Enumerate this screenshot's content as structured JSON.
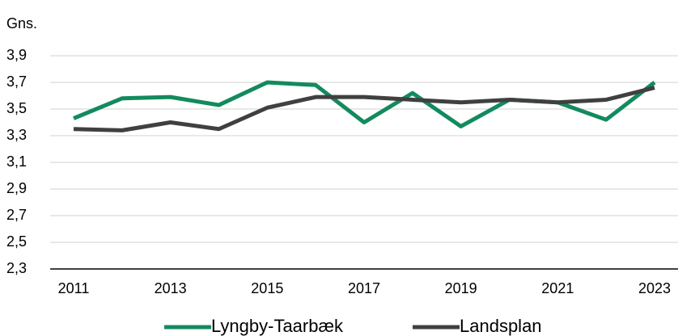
{
  "chart_data": {
    "type": "line",
    "y_label": "Gns.",
    "x": [
      2011,
      2012,
      2013,
      2014,
      2015,
      2016,
      2017,
      2018,
      2019,
      2020,
      2021,
      2022,
      2023
    ],
    "xlim": [
      2011,
      2023
    ],
    "xticks": [
      2011,
      2013,
      2015,
      2017,
      2019,
      2021,
      2023
    ],
    "ylim": [
      2.3,
      3.9
    ],
    "yticks": [
      {
        "value": 2.3,
        "label": "2,3"
      },
      {
        "value": 2.5,
        "label": "2,5"
      },
      {
        "value": 2.7,
        "label": "2,7"
      },
      {
        "value": 2.9,
        "label": "2,9"
      },
      {
        "value": 3.1,
        "label": "3,1"
      },
      {
        "value": 3.3,
        "label": "3,3"
      },
      {
        "value": 3.5,
        "label": "3,5"
      },
      {
        "value": 3.7,
        "label": "3,7"
      },
      {
        "value": 3.9,
        "label": "3,9"
      }
    ],
    "grid": true,
    "legend": "bottom",
    "series": [
      {
        "name": "Lyngby-Taarbæk",
        "color": "#138a5e",
        "values": [
          3.43,
          3.58,
          3.59,
          3.53,
          3.7,
          3.68,
          3.4,
          3.62,
          3.37,
          3.57,
          3.55,
          3.42,
          3.7
        ]
      },
      {
        "name": "Landsplan",
        "color": "#404040",
        "values": [
          3.35,
          3.34,
          3.4,
          3.35,
          3.51,
          3.59,
          3.59,
          3.57,
          3.55,
          3.57,
          3.55,
          3.57,
          3.66
        ]
      }
    ]
  }
}
